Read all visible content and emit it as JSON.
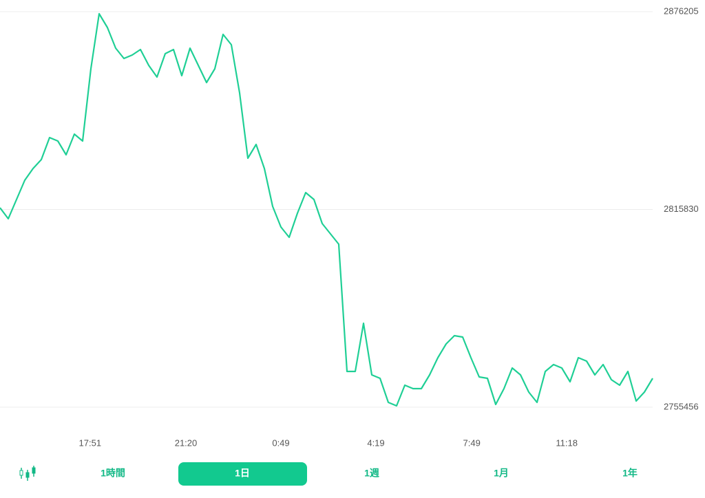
{
  "chart_data": {
    "type": "line",
    "color": "#1fcf95",
    "values": [
      2816356,
      2812996,
      2818876,
      2824756,
      2828326,
      2831056,
      2837776,
      2836726,
      2832526,
      2838826,
      2836726,
      2858776,
      2875576,
      2871376,
      2865076,
      2861926,
      2862976,
      2864656,
      2859826,
      2856256,
      2863396,
      2864656,
      2856676,
      2865076,
      2859826,
      2854576,
      2858776,
      2869276,
      2866126,
      2851426,
      2831476,
      2835676,
      2828326,
      2816776,
      2810476,
      2807326,
      2814676,
      2820976,
      2818876,
      2811526,
      2808376,
      2805226,
      2766376,
      2766376,
      2781076,
      2765326,
      2764276,
      2756926,
      2755876,
      2762176,
      2761126,
      2761126,
      2765326,
      2770576,
      2774776,
      2777296,
      2776876,
      2770576,
      2764696,
      2764276,
      2756296,
      2761126,
      2767426,
      2765326,
      2760076,
      2756926,
      2766376,
      2768476,
      2767426,
      2763226,
      2770576,
      2769526,
      2765326,
      2768476,
      2763856,
      2762176,
      2766376,
      2757346,
      2760076,
      2764276
    ],
    "xlim": [
      0,
      79
    ],
    "xticks": [
      {
        "value": 10.9,
        "label": "17:51"
      },
      {
        "value": 22.5,
        "label": "21:20"
      },
      {
        "value": 34,
        "label": "0:49"
      },
      {
        "value": 45.5,
        "label": "4:19"
      },
      {
        "value": 57.1,
        "label": "7:49"
      },
      {
        "value": 68.6,
        "label": "11:18"
      }
    ],
    "ylim": [
      2755456,
      2876205
    ],
    "yticks": [
      2755456,
      2815830,
      2876205
    ],
    "grid": true
  },
  "tabs": [
    "1時間",
    "1日",
    "1週",
    "1月",
    "1年"
  ],
  "active_tab": 1
}
